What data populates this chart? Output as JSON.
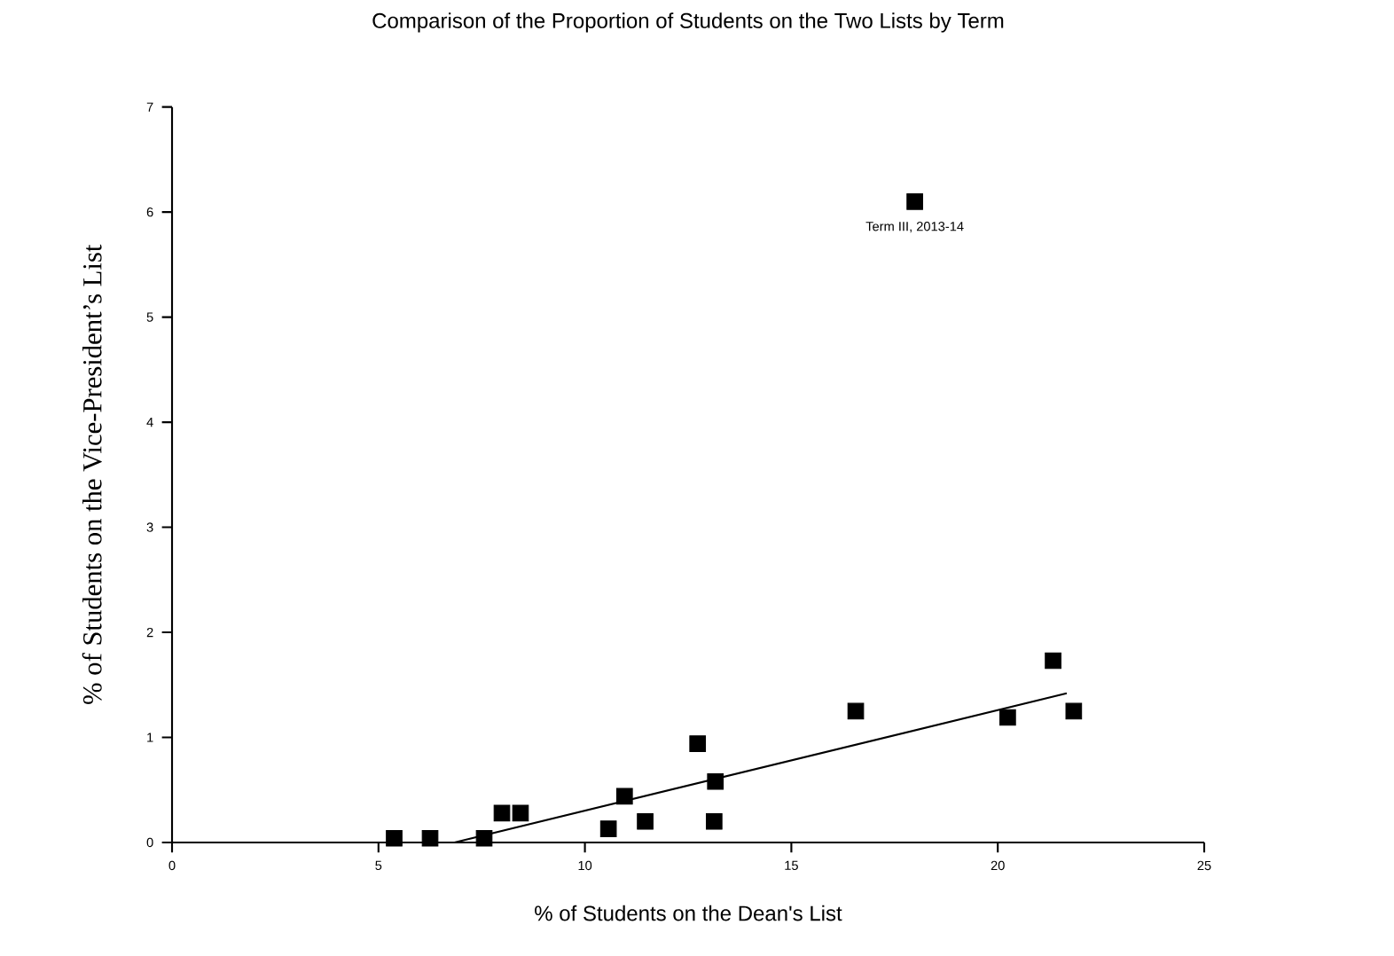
{
  "chart_data": {
    "type": "scatter",
    "title": "Comparison of the Proportion of Students on the Two Lists by Term",
    "xlabel": "% of Students on the Dean's List",
    "ylabel": "% of Students on the Vice-President’s List",
    "xlim": [
      0,
      25
    ],
    "xticks": [
      0,
      5,
      10,
      15,
      20,
      25
    ],
    "ylim": [
      0,
      7
    ],
    "yticks": [
      0,
      1,
      2,
      3,
      4,
      5,
      6,
      7
    ],
    "marker": "square",
    "grid": false,
    "series": [
      {
        "color": "#000000",
        "x": [
          5.38,
          6.25,
          7.56,
          7.99,
          8.44,
          10.57,
          10.96,
          11.46,
          12.73,
          13.16,
          13.13,
          16.56,
          20.24,
          21.34,
          21.84,
          17.99
        ],
        "values": [
          0.04,
          0.04,
          0.04,
          0.28,
          0.28,
          0.13,
          0.44,
          0.2,
          0.94,
          0.58,
          0.2,
          1.25,
          1.19,
          1.73,
          1.25,
          6.1
        ]
      },
      {
        "type": "line",
        "marker": "none",
        "color": "#000000",
        "x": [
          6.84,
          21.67
        ],
        "values": [
          0.0,
          1.42
        ]
      }
    ],
    "annotations": [
      {
        "text": "Term III, 2013-14",
        "x": 17.99,
        "y": 6.1
      }
    ]
  }
}
